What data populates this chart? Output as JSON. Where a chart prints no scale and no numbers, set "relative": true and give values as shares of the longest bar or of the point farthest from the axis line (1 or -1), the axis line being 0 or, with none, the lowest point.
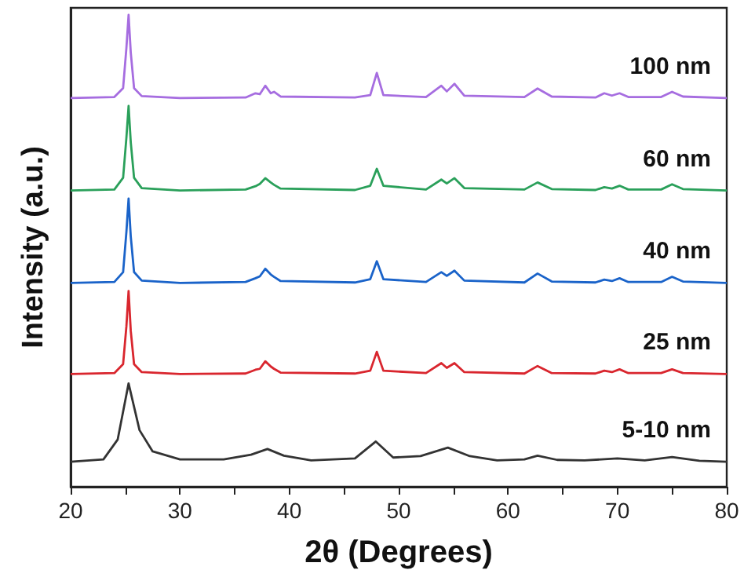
{
  "chart_data": {
    "type": "line",
    "xlabel": "2θ (Degrees)",
    "ylabel": "Intensity (a.u.)",
    "relative": true,
    "xlim": [
      20,
      80
    ],
    "xticks": [
      20,
      30,
      40,
      50,
      60,
      70,
      80
    ],
    "grid": false,
    "legend": false,
    "marker": "none",
    "series": [
      {
        "name": "5-10 nm",
        "color": "#333333",
        "x": [
          20,
          23,
          24.3,
          25.3,
          26.3,
          27.5,
          30,
          34,
          36.5,
          38,
          39.5,
          42,
          46,
          47.9,
          49.5,
          52,
          54.5,
          56.5,
          59,
          61.5,
          62.7,
          64.5,
          67,
          70,
          72.5,
          75,
          77.5,
          80
        ],
        "values": [
          0.053,
          0.058,
          0.1,
          0.219,
          0.12,
          0.075,
          0.058,
          0.058,
          0.068,
          0.08,
          0.066,
          0.056,
          0.06,
          0.096,
          0.062,
          0.065,
          0.083,
          0.065,
          0.056,
          0.058,
          0.066,
          0.057,
          0.056,
          0.06,
          0.056,
          0.063,
          0.055,
          0.053
        ]
      },
      {
        "name": "25 nm",
        "color": "#d9262e",
        "x": [
          20,
          24,
          24.8,
          25.1,
          25.3,
          25.5,
          25.8,
          26.5,
          30,
          36,
          36.9,
          37.3,
          37.8,
          38.3,
          38.6,
          39.2,
          46,
          47.4,
          48,
          48.6,
          52.5,
          53.9,
          54.4,
          55.1,
          56,
          61.5,
          62.7,
          64,
          68,
          68.8,
          69.5,
          70.2,
          71,
          74,
          75,
          76,
          80
        ],
        "values": [
          0.239,
          0.241,
          0.26,
          0.34,
          0.415,
          0.33,
          0.26,
          0.243,
          0.239,
          0.24,
          0.248,
          0.25,
          0.266,
          0.255,
          0.25,
          0.242,
          0.24,
          0.246,
          0.286,
          0.246,
          0.241,
          0.262,
          0.252,
          0.262,
          0.243,
          0.24,
          0.256,
          0.241,
          0.24,
          0.246,
          0.243,
          0.249,
          0.241,
          0.241,
          0.249,
          0.241,
          0.239
        ]
      },
      {
        "name": "40 nm",
        "color": "#1a63c9",
        "x": [
          20,
          24,
          24.8,
          25.1,
          25.3,
          25.5,
          25.8,
          26.5,
          30,
          36,
          36.9,
          37.3,
          37.8,
          38.3,
          38.6,
          39.2,
          46,
          47.4,
          48,
          48.6,
          52.5,
          53.9,
          54.4,
          55.1,
          56,
          61.5,
          62.7,
          64,
          68,
          68.8,
          69.5,
          70.2,
          71,
          74,
          75,
          76,
          80
        ],
        "values": [
          0.432,
          0.434,
          0.455,
          0.54,
          0.611,
          0.53,
          0.455,
          0.437,
          0.432,
          0.434,
          0.442,
          0.446,
          0.462,
          0.45,
          0.445,
          0.436,
          0.433,
          0.44,
          0.478,
          0.44,
          0.434,
          0.455,
          0.447,
          0.458,
          0.437,
          0.433,
          0.452,
          0.435,
          0.433,
          0.439,
          0.436,
          0.442,
          0.434,
          0.434,
          0.445,
          0.435,
          0.432
        ]
      },
      {
        "name": "60 nm",
        "color": "#2aa05a",
        "x": [
          20,
          24,
          24.8,
          25.1,
          25.3,
          25.5,
          25.8,
          26.5,
          30,
          36,
          36.9,
          37.3,
          37.8,
          38.3,
          38.6,
          39.2,
          46,
          47.4,
          48,
          48.6,
          52.5,
          53.9,
          54.4,
          55.1,
          56,
          61.5,
          62.7,
          64,
          68,
          68.8,
          69.5,
          70.2,
          71,
          74,
          75,
          76,
          80
        ],
        "values": [
          0.628,
          0.63,
          0.655,
          0.74,
          0.807,
          0.73,
          0.655,
          0.633,
          0.628,
          0.63,
          0.637,
          0.642,
          0.654,
          0.645,
          0.64,
          0.632,
          0.629,
          0.638,
          0.674,
          0.638,
          0.63,
          0.651,
          0.643,
          0.654,
          0.633,
          0.63,
          0.645,
          0.631,
          0.629,
          0.635,
          0.632,
          0.638,
          0.63,
          0.63,
          0.641,
          0.631,
          0.628
        ]
      },
      {
        "name": "100 nm",
        "color": "#a66de0",
        "x": [
          20,
          24,
          24.8,
          25.1,
          25.3,
          25.5,
          25.8,
          26.5,
          30,
          36,
          36.9,
          37.3,
          37.8,
          38.3,
          38.6,
          39.2,
          46,
          47.4,
          48,
          48.6,
          52.5,
          53.9,
          54.4,
          55.1,
          56,
          61.5,
          62.7,
          64,
          68,
          68.8,
          69.5,
          70.2,
          71,
          74,
          75,
          76,
          80
        ],
        "values": [
          0.824,
          0.826,
          0.845,
          0.93,
          1.0,
          0.92,
          0.845,
          0.828,
          0.824,
          0.825,
          0.834,
          0.832,
          0.85,
          0.834,
          0.837,
          0.827,
          0.825,
          0.83,
          0.877,
          0.83,
          0.826,
          0.85,
          0.838,
          0.854,
          0.829,
          0.826,
          0.844,
          0.827,
          0.825,
          0.834,
          0.829,
          0.834,
          0.826,
          0.826,
          0.837,
          0.827,
          0.824
        ]
      }
    ]
  }
}
